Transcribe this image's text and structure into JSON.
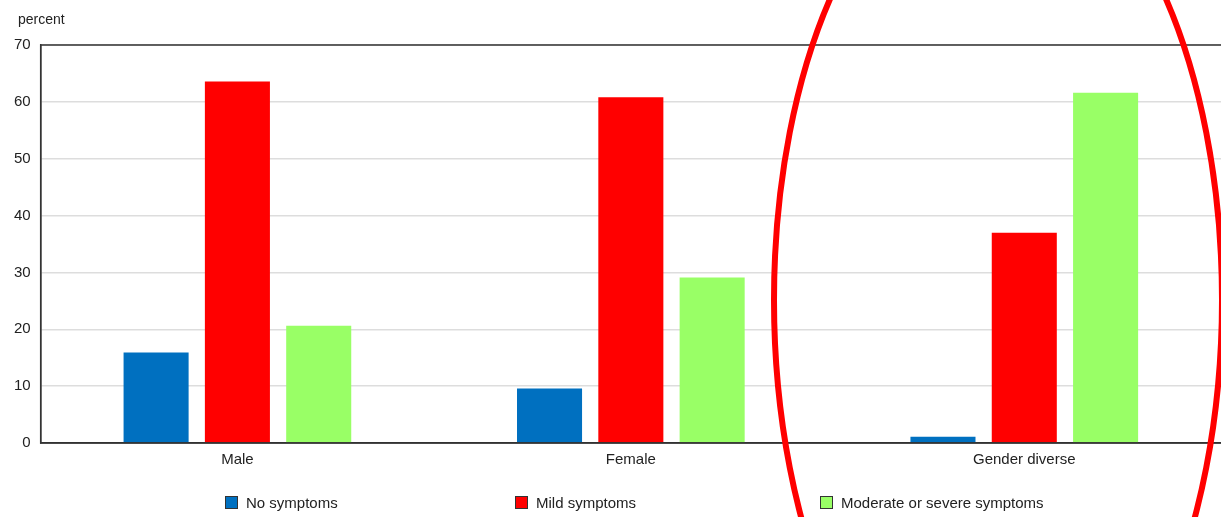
{
  "chart_data": {
    "type": "bar",
    "ylabel": "percent",
    "categories": [
      "Male",
      "Female",
      "Gender diverse"
    ],
    "series": [
      {
        "name": "No symptoms",
        "color": "#0070c0",
        "values": [
          15.9,
          9.6,
          1.1
        ]
      },
      {
        "name": "Mild symptoms",
        "color": "#ff0000",
        "values": [
          63.6,
          60.8,
          37.0
        ]
      },
      {
        "name": "Moderate or severe symptoms",
        "color": "#99ff66",
        "values": [
          20.6,
          29.1,
          61.6
        ]
      }
    ],
    "ylim": [
      0,
      70
    ],
    "yticks": [
      0,
      10,
      20,
      30,
      40,
      50,
      60,
      70
    ],
    "grid": "y",
    "legend": "bottom"
  }
}
